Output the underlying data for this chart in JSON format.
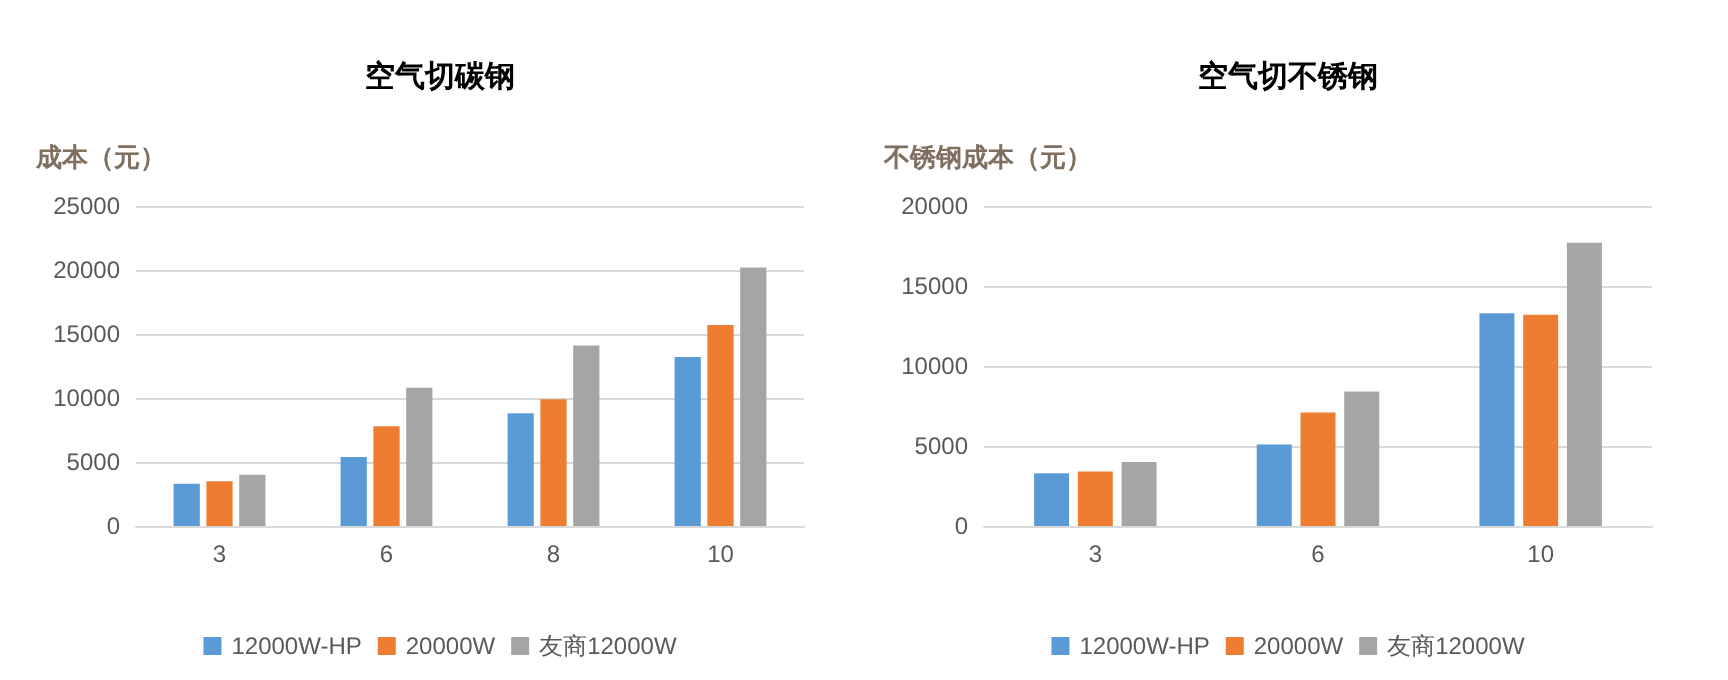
{
  "chart_data": [
    {
      "type": "bar",
      "title": "空气切碳钢",
      "ylabel": "成本（元）",
      "categories": [
        "3",
        "6",
        "8",
        "10"
      ],
      "series": [
        {
          "name": "12000W-HP",
          "color": "#5b9bd5",
          "values": [
            3300,
            5400,
            8800,
            13200
          ]
        },
        {
          "name": "20000W",
          "color": "#ed7d31",
          "values": [
            3500,
            7800,
            9900,
            15700
          ]
        },
        {
          "name": "友商12000W",
          "color": "#a5a5a5",
          "values": [
            4000,
            10800,
            14100,
            20200
          ]
        }
      ],
      "ylim": [
        0,
        25000
      ],
      "yticks": [
        0,
        5000,
        10000,
        15000,
        20000,
        25000
      ],
      "grid": "y",
      "legend": "bottom"
    },
    {
      "type": "bar",
      "title": "空气切不锈钢",
      "ylabel": "不锈钢成本（元）",
      "categories": [
        "3",
        "6",
        "10"
      ],
      "series": [
        {
          "name": "12000W-HP",
          "color": "#5b9bd5",
          "values": [
            3300,
            5100,
            13300
          ]
        },
        {
          "name": "20000W",
          "color": "#ed7d31",
          "values": [
            3400,
            7100,
            13200
          ]
        },
        {
          "name": "友商12000W",
          "color": "#a5a5a5",
          "values": [
            4000,
            8400,
            17700
          ]
        }
      ],
      "ylim": [
        0,
        20000
      ],
      "yticks": [
        0,
        5000,
        10000,
        15000,
        20000
      ],
      "grid": "y",
      "legend": "bottom"
    }
  ]
}
